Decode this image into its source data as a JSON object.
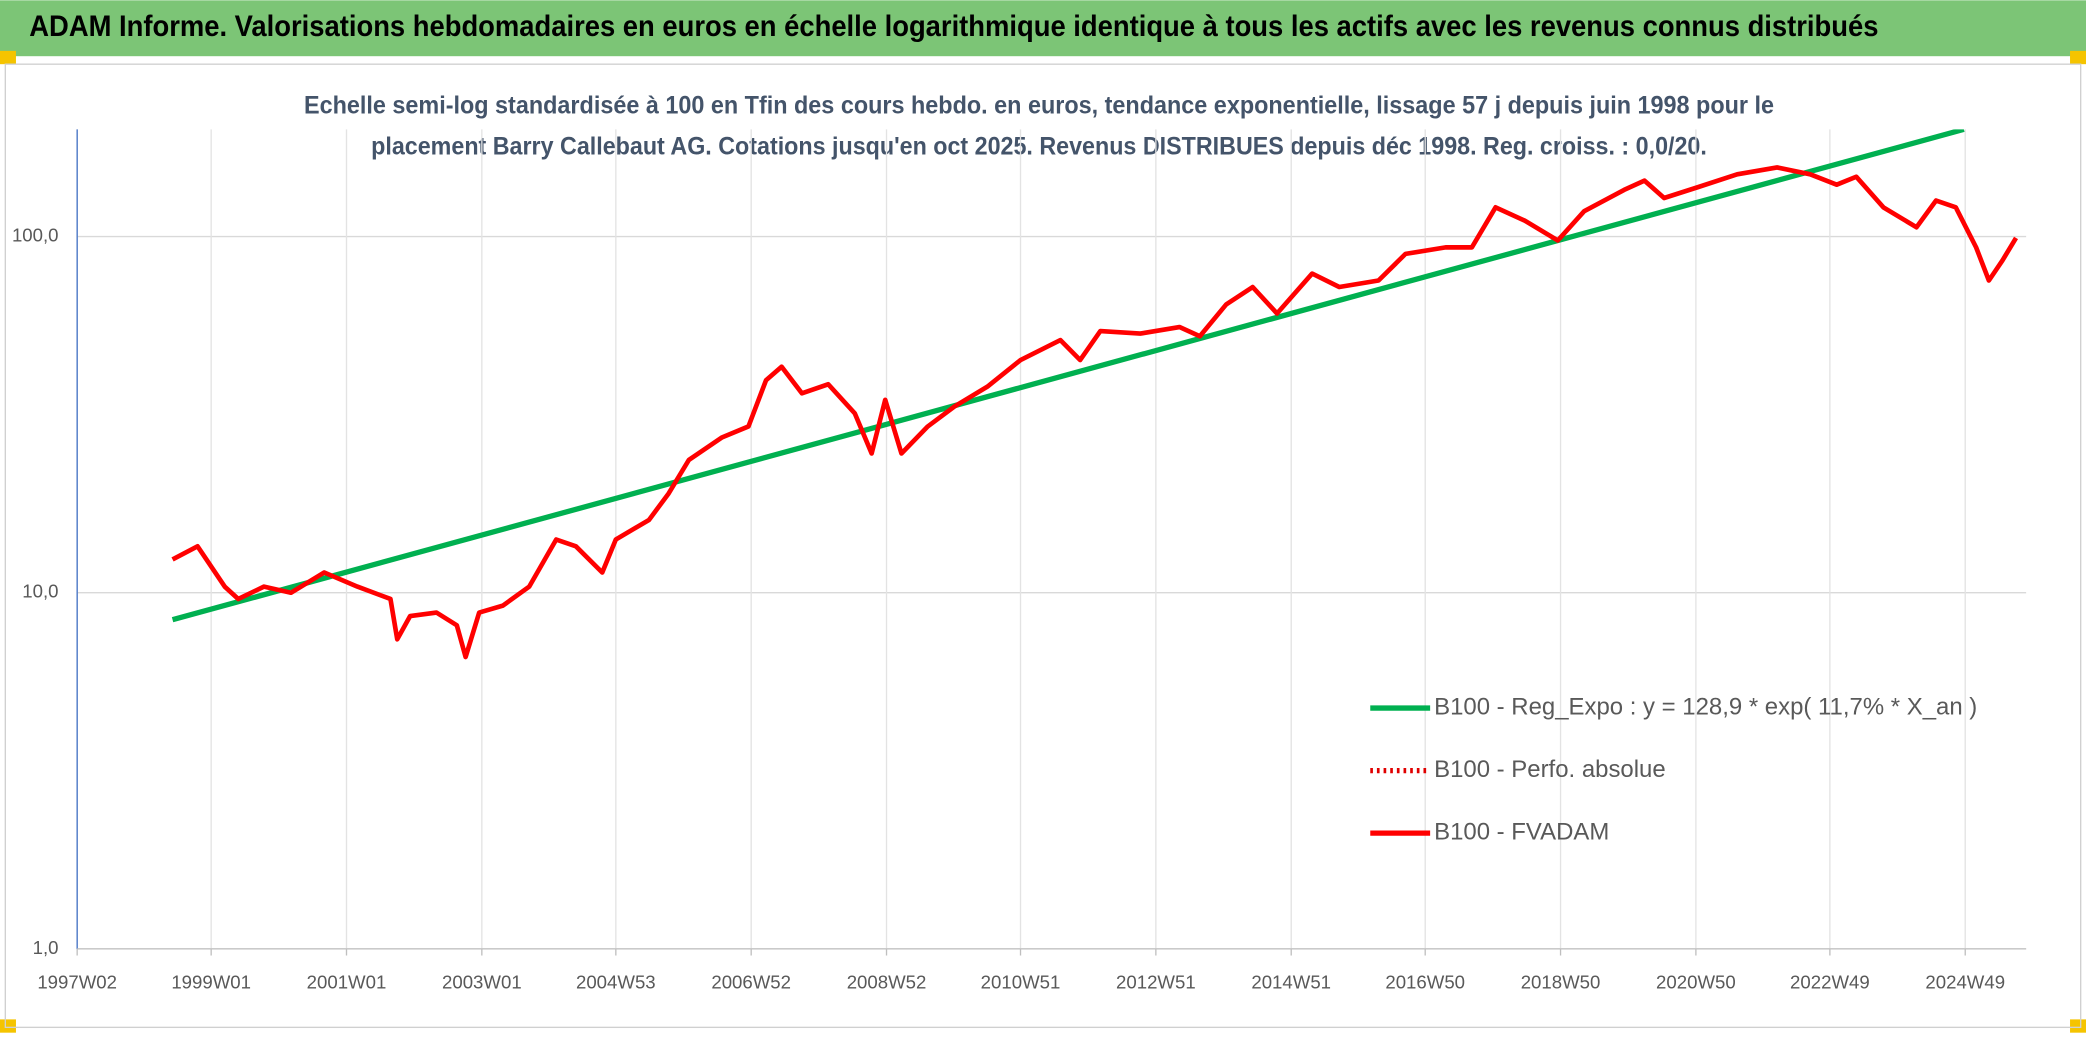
{
  "chart_data": {
    "type": "line",
    "title": "ADAM Informe. Valorisations hebdomadaires en euros en échelle logarithmique identique à tous les actifs avec les revenus connus distribués",
    "subtitle": [
      "Echelle semi-log standardisée à 100 en Tfin des cours hebdo. en euros, tendance exponentielle, lissage 57 j depuis juin 1998 pour le",
      "placement Barry Callebaut AG. Cotations jusqu'en oct 2025. Revenus DISTRIBUES depuis déc 1998. Reg. croiss. : 0,0/20."
    ],
    "log_y": true,
    "grid": true,
    "legend": "right",
    "xlim": [
      1997.02,
      2025.82
    ],
    "xticks": [
      {
        "value": 1997.02,
        "label": "1997W02"
      },
      {
        "value": 1999.0,
        "label": "1999W01"
      },
      {
        "value": 2001.0,
        "label": "2001W01"
      },
      {
        "value": 2003.0,
        "label": "2003W01"
      },
      {
        "value": 2004.98,
        "label": "2004W53"
      },
      {
        "value": 2006.98,
        "label": "2006W52"
      },
      {
        "value": 2008.98,
        "label": "2008W52"
      },
      {
        "value": 2010.96,
        "label": "2010W51"
      },
      {
        "value": 2012.96,
        "label": "2012W51"
      },
      {
        "value": 2014.96,
        "label": "2014W51"
      },
      {
        "value": 2016.94,
        "label": "2016W50"
      },
      {
        "value": 2018.94,
        "label": "2018W50"
      },
      {
        "value": 2020.94,
        "label": "2020W50"
      },
      {
        "value": 2022.92,
        "label": "2022W49"
      },
      {
        "value": 2024.92,
        "label": "2024W49"
      }
    ],
    "ylim": [
      1,
      200
    ],
    "yticks": [
      {
        "value": 1,
        "label": "1,0"
      },
      {
        "value": 10,
        "label": "10,0"
      },
      {
        "value": 100,
        "label": "100,0"
      }
    ],
    "series": [
      {
        "name": "B100 - Reg_Expo : y = 128,9 * exp( 11,7% *  X_an )",
        "color": "#00b050",
        "style": "solid",
        "x": [
          1998.43,
          2024.9
        ],
        "values": [
          8.4,
          200
        ]
      },
      {
        "name": "B100 - Perfo. absolue",
        "color": "#e00000",
        "style": "dotted",
        "x": [],
        "values": []
      },
      {
        "name": "B100 - FVADAM",
        "color": "#ff0000",
        "style": "solid",
        "x": [
          1998.43,
          1998.8,
          1999.2,
          1999.4,
          1999.78,
          2000.18,
          2000.67,
          2001.16,
          2001.65,
          2001.75,
          2001.94,
          2002.33,
          2002.63,
          2002.76,
          2002.96,
          2003.31,
          2003.7,
          2004.1,
          2004.39,
          2004.78,
          2004.98,
          2005.47,
          2005.76,
          2006.06,
          2006.55,
          2006.94,
          2007.2,
          2007.43,
          2007.73,
          2008.12,
          2008.51,
          2008.76,
          2008.96,
          2009.2,
          2009.59,
          2009.98,
          2010.47,
          2010.96,
          2011.55,
          2011.84,
          2012.14,
          2012.73,
          2013.31,
          2013.61,
          2014.0,
          2014.39,
          2014.75,
          2015.27,
          2015.67,
          2016.25,
          2016.65,
          2017.24,
          2017.63,
          2017.98,
          2018.41,
          2018.9,
          2019.29,
          2019.88,
          2020.18,
          2020.47,
          2020.96,
          2021.55,
          2022.14,
          2022.63,
          2023.02,
          2023.31,
          2023.71,
          2024.2,
          2024.49,
          2024.78,
          2025.08,
          2025.27,
          2025.47,
          2025.67
        ],
        "values": [
          12.4,
          13.5,
          10.4,
          9.6,
          10.4,
          10.0,
          11.4,
          10.4,
          9.6,
          7.4,
          8.6,
          8.8,
          8.1,
          6.6,
          8.8,
          9.2,
          10.4,
          14.1,
          13.5,
          11.4,
          14.1,
          16.0,
          19.0,
          23.6,
          27.3,
          29.3,
          39.5,
          43.1,
          36.3,
          38.5,
          31.9,
          24.6,
          34.8,
          24.6,
          29.3,
          33.3,
          37.9,
          45.0,
          51.2,
          45.0,
          54.3,
          53.4,
          55.7,
          52.5,
          64.5,
          72.2,
          60.8,
          78.7,
          72.2,
          75.3,
          89.4,
          93.3,
          93.3,
          120.8,
          110.9,
          97.5,
          117.8,
          135.2,
          143.6,
          128.3,
          137.4,
          149.6,
          156.4,
          149.6,
          139.9,
          147.2,
          120.8,
          106.2,
          126.2,
          120.8,
          93.3,
          75.3,
          85.7,
          99.1
        ]
      }
    ]
  }
}
